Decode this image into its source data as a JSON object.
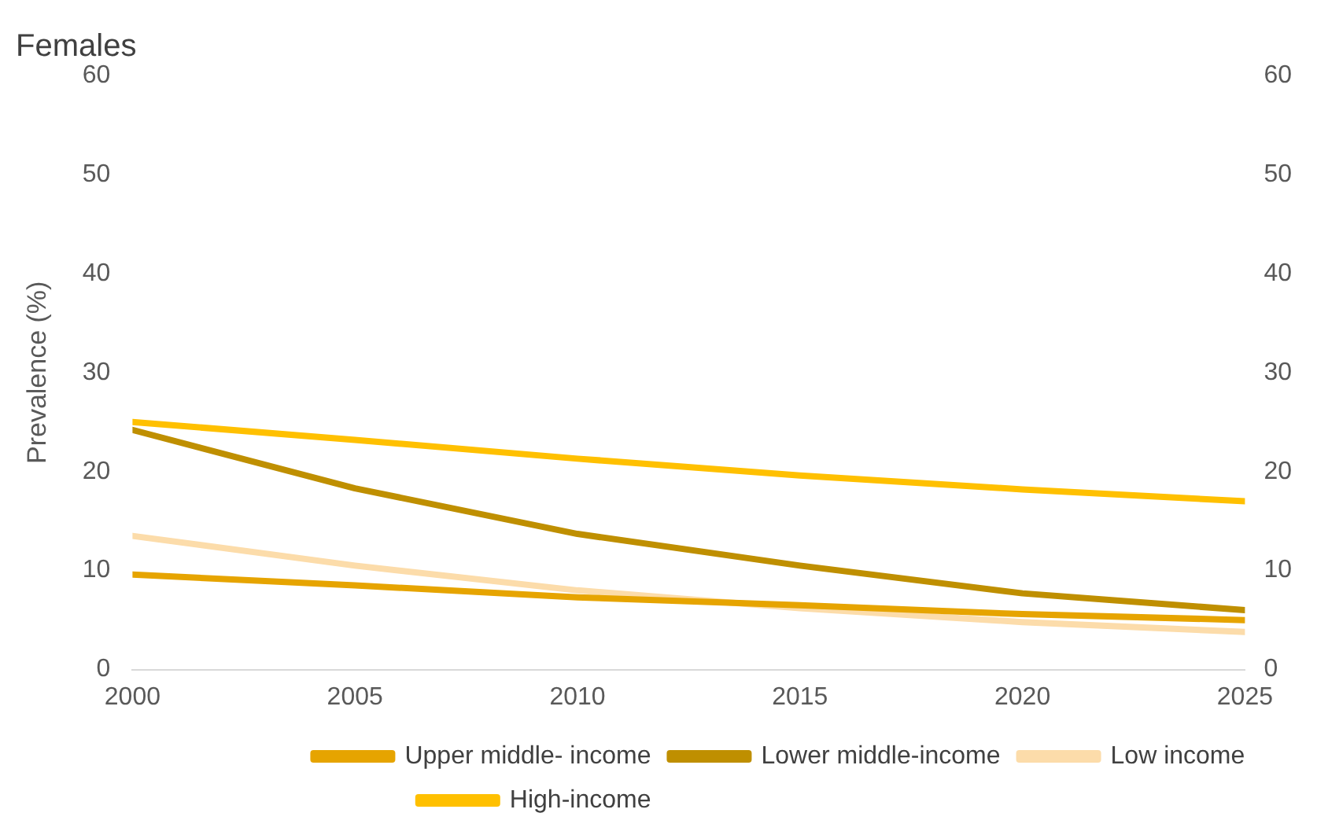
{
  "chart_data": {
    "type": "line",
    "title": "Females",
    "ylabel": "Prevalence (%)",
    "x": [
      2000,
      2005,
      2010,
      2015,
      2020,
      2025
    ],
    "xlim": [
      2000,
      2025
    ],
    "xticks": [
      2000,
      2005,
      2010,
      2015,
      2020,
      2025
    ],
    "ylim": [
      0,
      60
    ],
    "yticks": [
      0,
      10,
      20,
      30,
      40,
      50,
      60
    ],
    "y2lim": [
      0,
      60
    ],
    "y2ticks": [
      0,
      10,
      20,
      30,
      40,
      50,
      60
    ],
    "grid": false,
    "legend": "bottom",
    "marker": "none",
    "line_style": "solid",
    "series": [
      {
        "name": "Upper middle- income",
        "color": "#e6a400",
        "values": [
          9.6,
          8.5,
          7.3,
          6.5,
          5.6,
          5.0
        ]
      },
      {
        "name": "Lower middle-income",
        "color": "#bf8f00",
        "values": [
          24.2,
          18.3,
          13.7,
          10.5,
          7.7,
          6.0
        ]
      },
      {
        "name": "Low income",
        "color": "#fcdcaa",
        "values": [
          13.5,
          10.5,
          8.0,
          6.2,
          4.8,
          3.8
        ]
      },
      {
        "name": "High-income",
        "color": "#ffc000",
        "values": [
          25,
          23.2,
          21.3,
          19.6,
          18.2,
          17.0
        ]
      }
    ]
  }
}
